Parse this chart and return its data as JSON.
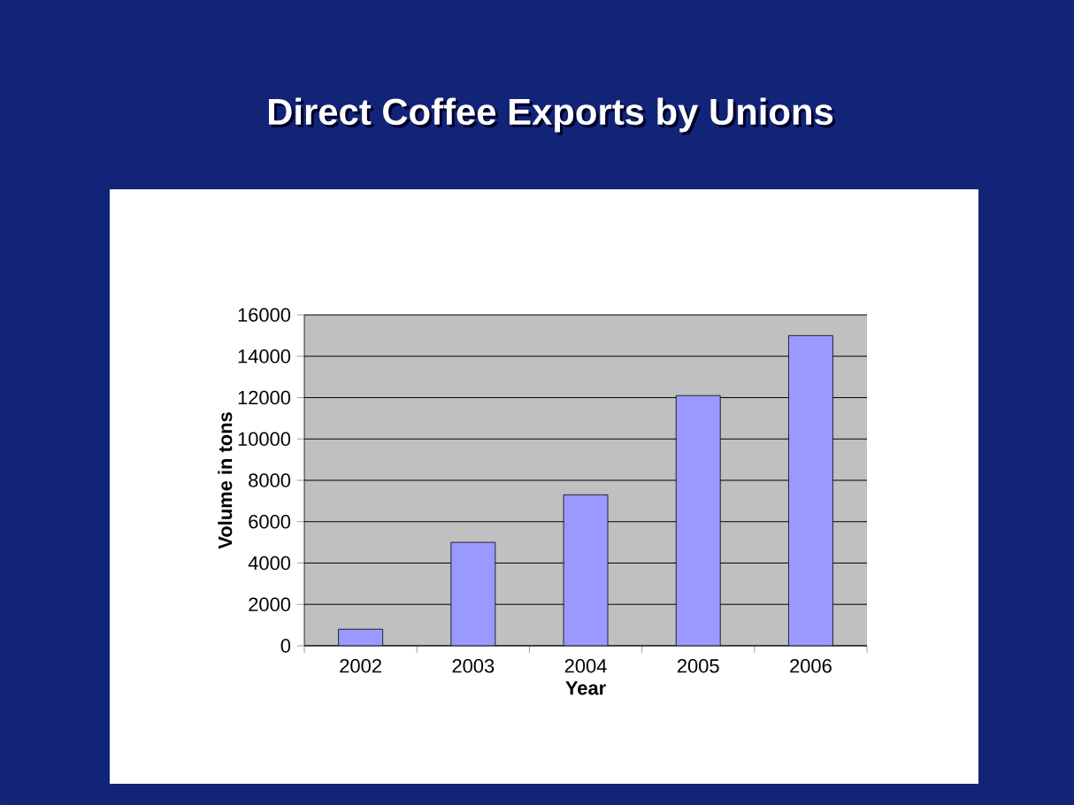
{
  "chart_data": {
    "type": "bar",
    "title": "Direct Coffee Exports by Unions",
    "xlabel": "Year",
    "ylabel": "Volume in tons",
    "categories": [
      "2002",
      "2003",
      "2004",
      "2005",
      "2006"
    ],
    "values": [
      800,
      5000,
      7300,
      12100,
      15000
    ],
    "color": "#9999ff",
    "ylim": [
      0,
      16000
    ],
    "yticks": [
      0,
      2000,
      4000,
      6000,
      8000,
      10000,
      12000,
      14000,
      16000
    ],
    "grid": "y"
  }
}
